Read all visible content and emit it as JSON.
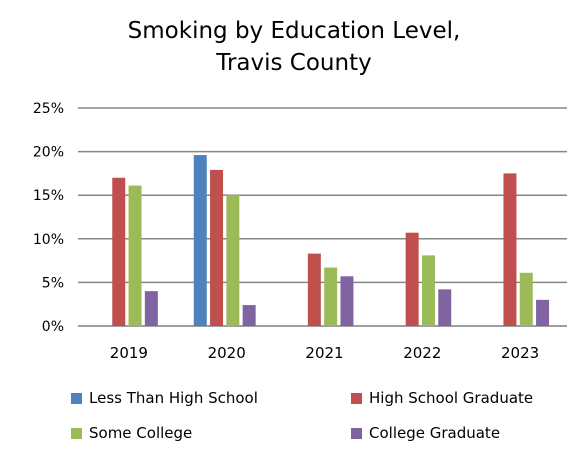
{
  "chart_data": {
    "type": "bar",
    "title_lines": [
      "Smoking by Education Level,",
      "Travis County"
    ],
    "categories": [
      "2019",
      "2020",
      "2021",
      "2022",
      "2023"
    ],
    "y_ticks": [
      "0%",
      "5%",
      "10%",
      "15%",
      "20%",
      "25%"
    ],
    "ylim": [
      0,
      25
    ],
    "y_unit": "percent",
    "grid": true,
    "legend_position": "bottom",
    "series": [
      {
        "name": "Less Than High School",
        "color": "#4F81BD",
        "values": [
          null,
          19.6,
          null,
          null,
          null
        ]
      },
      {
        "name": "High School Graduate",
        "color": "#C0504D",
        "values": [
          17.0,
          17.9,
          8.3,
          10.7,
          17.5
        ]
      },
      {
        "name": "Some College",
        "color": "#9BBB59",
        "values": [
          16.1,
          15.0,
          6.7,
          8.1,
          6.1
        ]
      },
      {
        "name": "College Graduate",
        "color": "#8064A2",
        "values": [
          4.0,
          2.4,
          5.7,
          4.2,
          3.0
        ]
      }
    ]
  }
}
